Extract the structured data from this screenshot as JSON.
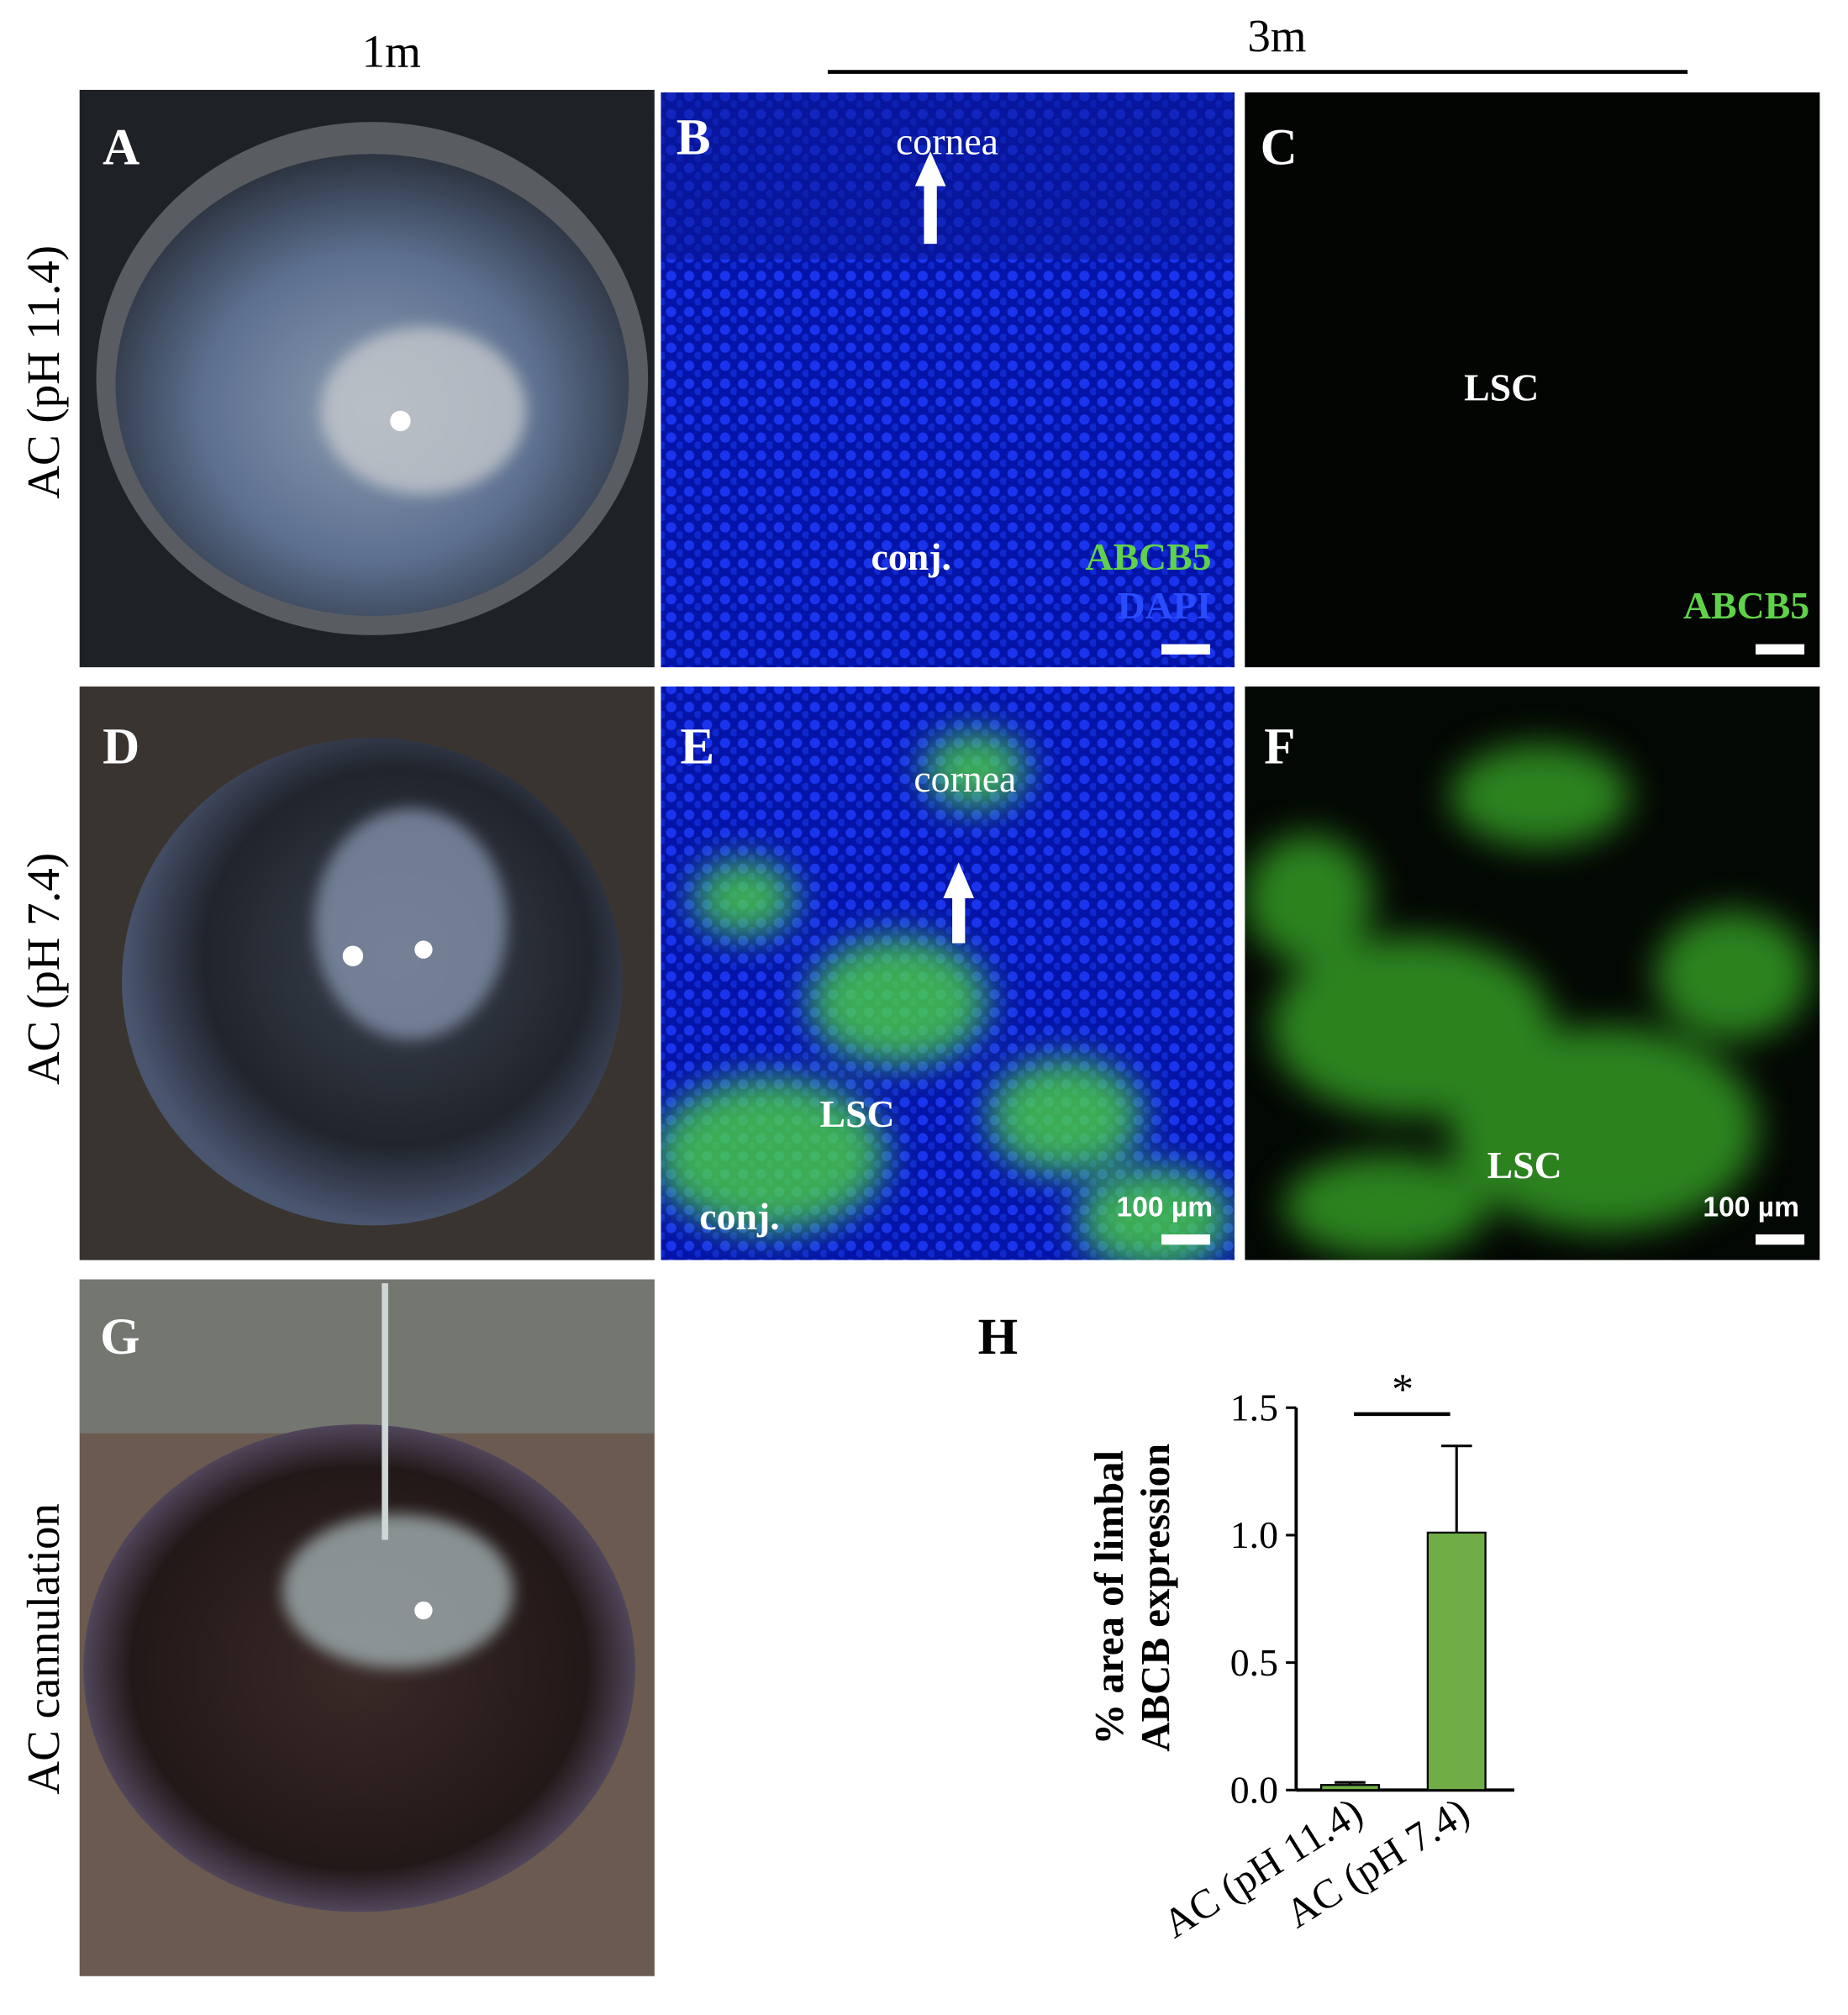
{
  "column_headers": [
    "1m",
    "3m"
  ],
  "row_labels": [
    "AC (pH 11.4)",
    "AC (pH 7.4)",
    "AC cannulation"
  ],
  "panels": [
    {
      "letter": "A"
    },
    {
      "letter": "B",
      "labels": [
        "cornea",
        "conj.",
        "ABCB5",
        "DAPI"
      ]
    },
    {
      "letter": "C",
      "labels": [
        "LSC",
        "ABCB5"
      ]
    },
    {
      "letter": "D"
    },
    {
      "letter": "E",
      "labels": [
        "cornea",
        "LSC",
        "conj.",
        "100 µm"
      ]
    },
    {
      "letter": "F",
      "labels": [
        "LSC",
        "100 µm"
      ]
    },
    {
      "letter": "G"
    },
    {
      "letter": "H"
    }
  ],
  "chart_data": {
    "type": "bar",
    "categories": [
      "AC (pH 11.4)",
      "AC (pH 7.4)"
    ],
    "values": [
      0.02,
      1.01
    ],
    "errors": [
      0.01,
      0.34
    ],
    "colors": [
      "#70ad47",
      "#70ad47"
    ],
    "ylabel": [
      "% area of limbal",
      "ABCB expression"
    ],
    "ylim": [
      0,
      1.5
    ],
    "yticks": [
      {
        "value": 0,
        "label": "0.0"
      },
      {
        "value": 0.5,
        "label": "0.5"
      },
      {
        "value": 1,
        "label": "1.0"
      },
      {
        "value": 1.5,
        "label": "1.5"
      }
    ],
    "significance": "*"
  }
}
